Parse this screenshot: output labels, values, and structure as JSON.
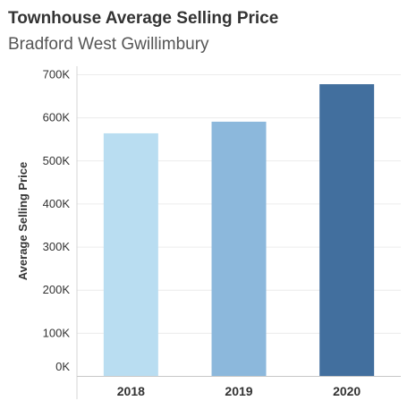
{
  "chart_data": {
    "type": "bar",
    "title": "Townhouse Average Selling Price",
    "subtitle": "Bradford West Gwillimbury",
    "xlabel": "",
    "ylabel": "Average Selling Price",
    "categories": [
      "2018",
      "2019",
      "2020"
    ],
    "values": [
      563000,
      590000,
      677000
    ],
    "colors": [
      "#b9ddf1",
      "#8cb8dc",
      "#426f9e"
    ],
    "ylim": [
      0,
      700000
    ],
    "yticks": [
      0,
      100000,
      200000,
      300000,
      400000,
      500000,
      600000,
      700000
    ],
    "ytick_labels": [
      "0K",
      "100K",
      "200K",
      "300K",
      "400K",
      "500K",
      "600K",
      "700K"
    ],
    "grid": true,
    "legend": "none"
  }
}
